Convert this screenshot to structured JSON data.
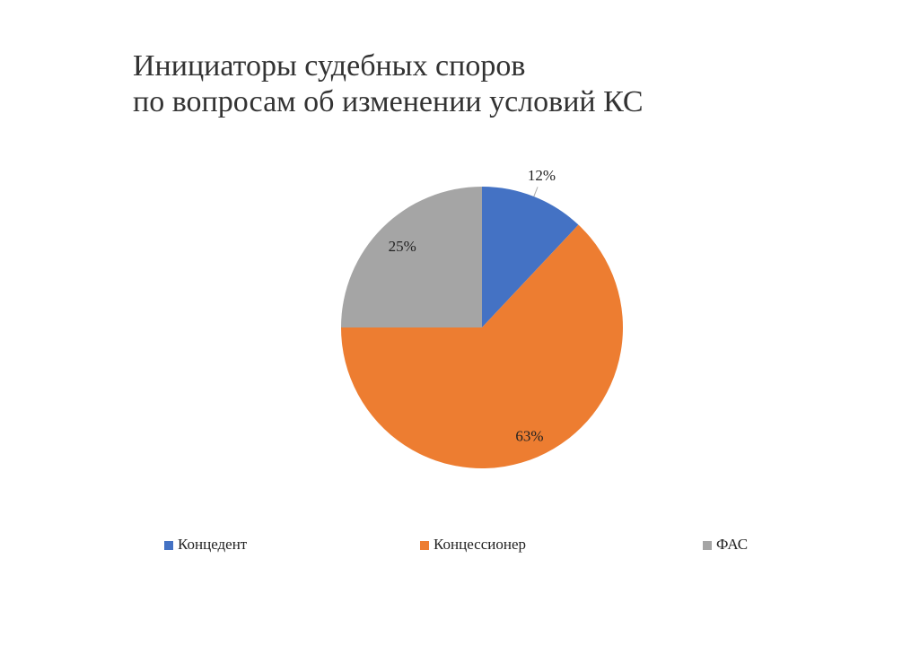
{
  "chart_data": {
    "type": "pie",
    "title": [
      "Инициаторы судебных споров",
      "по вопросам об изменении условий КС"
    ],
    "categories": [
      "Концедент",
      "Концессионер",
      "ФАС"
    ],
    "values": [
      12,
      63,
      25
    ],
    "value_labels": [
      "12%",
      "63%",
      "25%"
    ],
    "colors": [
      "#4472c4",
      "#ed7d31",
      "#a5a5a5"
    ],
    "legend": "bottom"
  }
}
